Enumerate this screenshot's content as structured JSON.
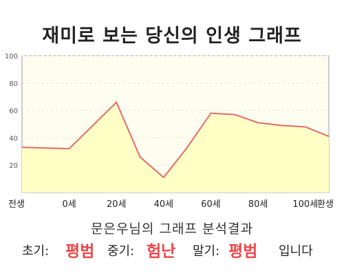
{
  "title": "재미로 보는 당신의 인생 그래프",
  "subtitle": "문은우님의 그래프 분석결과",
  "summary": {
    "early_label": "초기:",
    "early_value": "평범",
    "mid_label": "중기:",
    "mid_value": "험난",
    "late_label": "말기:",
    "late_value": "평범",
    "ending": "입니다"
  },
  "colors": {
    "line": "#e36a6a",
    "fill": "#ffffc6",
    "plot_bg": "#fefef0",
    "highlight": "#e8474a"
  },
  "chart_data": {
    "type": "area",
    "title": "재미로 보는 당신의 인생 그래프",
    "xlabel": "",
    "ylabel": "",
    "ylim": [
      0,
      100
    ],
    "y_ticks": [
      "100",
      "80",
      "60",
      "40",
      "20"
    ],
    "x_ticks": [
      "전생",
      "0세",
      "20세",
      "40세",
      "60세",
      "80세",
      "100세",
      "환생"
    ],
    "grid": true,
    "series": [
      {
        "x": [
          "전생",
          "",
          "0세",
          "",
          "20세",
          "",
          "40세",
          "",
          "60세",
          "",
          "80세",
          "",
          "100세",
          "환생"
        ],
        "values": [
          33,
          32.5,
          32,
          49,
          66,
          26,
          11,
          33,
          58,
          57,
          51,
          49,
          48,
          41
        ]
      }
    ]
  }
}
